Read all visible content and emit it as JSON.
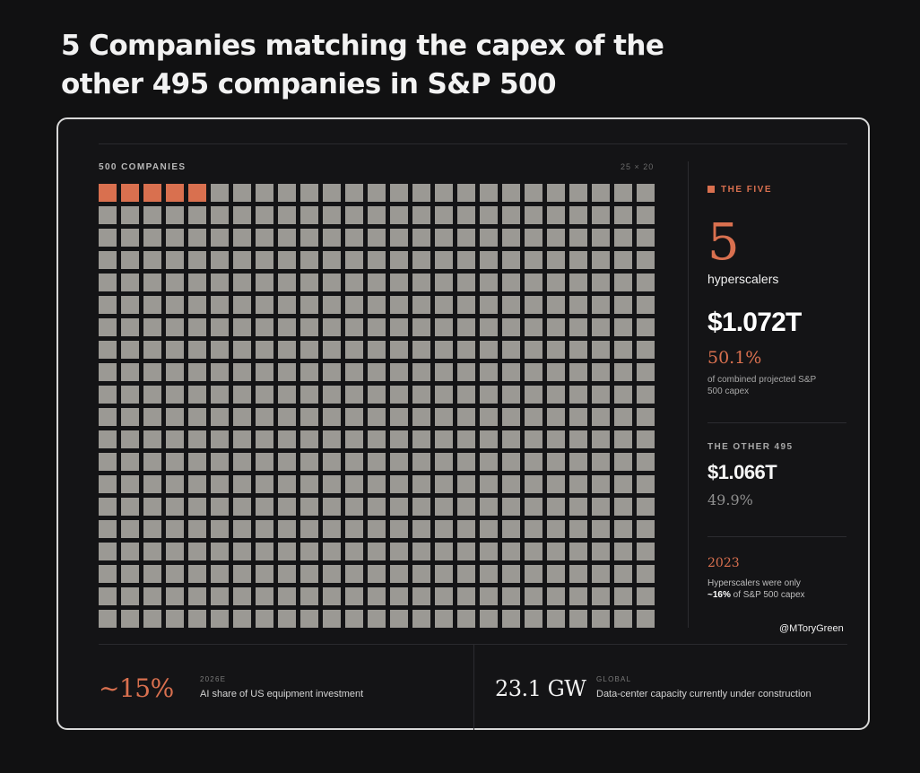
{
  "title": "5 Companies matching the capex of the other 495 companies in S&P 500",
  "colors": {
    "highlight": "#d9704f",
    "others": "#9b9994",
    "background": "#111112"
  },
  "chart_data": {
    "type": "waffle",
    "label": "500 COMPANIES",
    "dimensions_label": "25 × 20",
    "columns": 25,
    "rows": 20,
    "total": 500,
    "series": [
      {
        "name": "THE FIVE",
        "count": 5
      },
      {
        "name": "THE OTHER 495",
        "count": 495
      }
    ]
  },
  "sidebar": {
    "legend_label": "THE FIVE",
    "five_count": "5",
    "five_count_label": "hyperscalers",
    "five_capex": "$1.072T",
    "five_share": "50.1%",
    "five_note": "of combined projected S&P 500 capex",
    "other_title": "THE OTHER 495",
    "other_capex": "$1.066T",
    "other_share": "49.9%",
    "year": "2023",
    "year_note_prefix": "Hyperscalers were only",
    "year_note_bold": "~16%",
    "year_note_suffix": "of S&P 500 capex",
    "handle": "@MToryGreen"
  },
  "bottom": {
    "stat1_value": "~15%",
    "stat1_tag": "2026E",
    "stat1_desc": "AI share of US equipment investment",
    "stat2_value": "23.1 GW",
    "stat2_tag": "GLOBAL",
    "stat2_desc": "Data-center capacity currently under construction"
  }
}
